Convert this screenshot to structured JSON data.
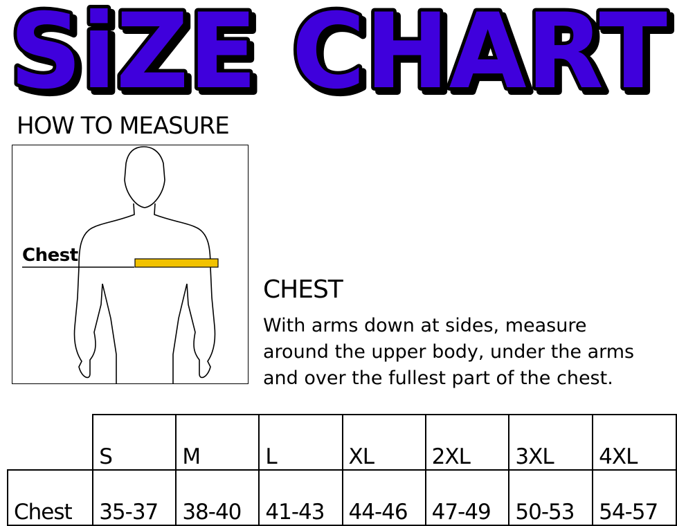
{
  "title": "SiZE CHART",
  "colors": {
    "title_fill": "#3f00dc",
    "title_outline": "#000000",
    "tape": "#f2c200"
  },
  "how_to_measure": "HOW TO MEASURE",
  "figure_label": "Chest",
  "section": {
    "heading": "CHEST",
    "lines": [
      "With arms down at sides, measure",
      "around the upper body, under the arms",
      "and over the fullest part of the chest."
    ]
  },
  "table": {
    "sizes": [
      "S",
      "M",
      "L",
      "XL",
      "2XL",
      "3XL",
      "4XL"
    ],
    "row_label": "Chest",
    "values": [
      "35-37",
      "38-40",
      "41-43",
      "44-46",
      "47-49",
      "50-53",
      "54-57"
    ]
  }
}
